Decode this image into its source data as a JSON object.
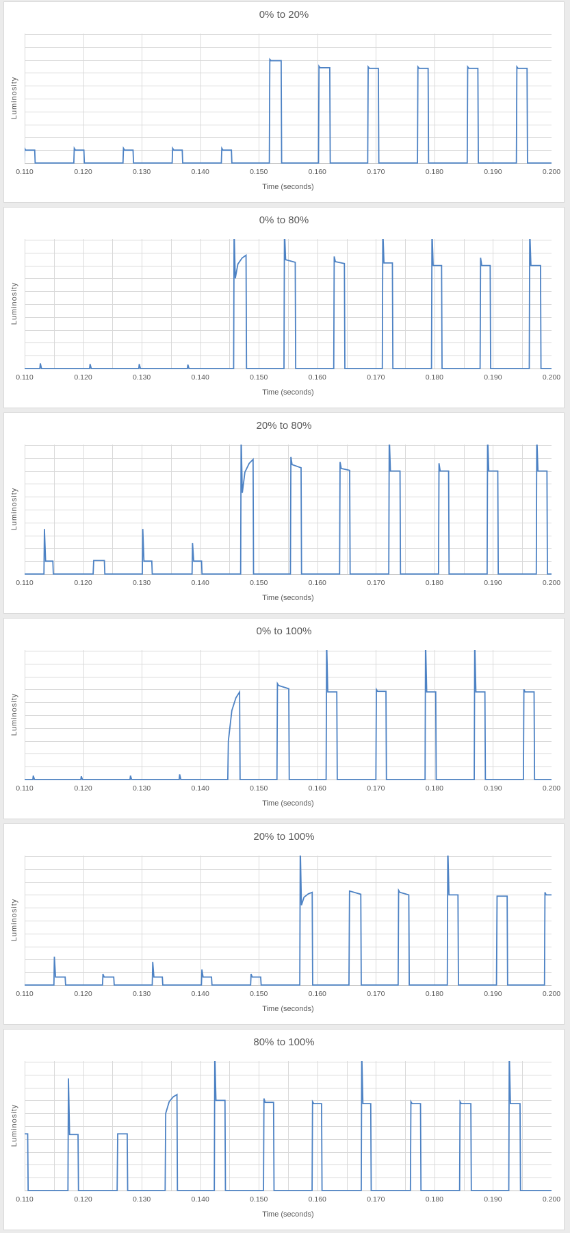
{
  "page": {
    "background": "#ebebeb",
    "panel_background": "#ffffff",
    "panel_border": "#d9d9d9",
    "gridline_color": "#d9d9d9",
    "axis_line_color": "#bfbfbf",
    "line_color": "#4d82c4",
    "text_color": "#595959"
  },
  "axis": {
    "x_label": "Time (seconds)",
    "y_label": "Luminosity",
    "x_min": 0.11,
    "x_max": 0.2,
    "x_tick_step": 0.01,
    "y_divisions": 10,
    "x_ticks": [
      "0.110",
      "0.120",
      "0.130",
      "0.140",
      "0.150",
      "0.160",
      "0.170",
      "0.180",
      "0.190",
      "0.200"
    ]
  },
  "chart_data": [
    {
      "type": "line",
      "title": "0% to 20%",
      "xlabel": "Time (seconds)",
      "ylabel": "Luminosity",
      "x_range": [
        0.11,
        0.2
      ],
      "x_gridline_step": 0.01,
      "grid": true,
      "legend": "none",
      "pulses": [
        {
          "t": 0.1099,
          "w": 0.0019,
          "lvl": 0.1,
          "spike": 0.115
        },
        {
          "t": 0.1184,
          "w": 0.0018,
          "lvl": 0.1,
          "spike": 0.115
        },
        {
          "t": 0.1268,
          "w": 0.0018,
          "lvl": 0.1,
          "spike": 0.115
        },
        {
          "t": 0.1352,
          "w": 0.0018,
          "lvl": 0.1,
          "spike": 0.115
        },
        {
          "t": 0.1436,
          "w": 0.0018,
          "lvl": 0.1,
          "spike": 0.115
        },
        {
          "t": 0.1518,
          "w": 0.0021,
          "lvl": 0.795,
          "spike": 0.805
        },
        {
          "t": 0.1602,
          "w": 0.002,
          "lvl": 0.74,
          "spike": 0.752
        },
        {
          "t": 0.1686,
          "w": 0.0019,
          "lvl": 0.735,
          "spike": 0.747
        },
        {
          "t": 0.1771,
          "w": 0.0019,
          "lvl": 0.735,
          "spike": 0.747
        },
        {
          "t": 0.1856,
          "w": 0.0019,
          "lvl": 0.735,
          "spike": 0.747
        },
        {
          "t": 0.194,
          "w": 0.0019,
          "lvl": 0.735,
          "spike": 0.747
        }
      ]
    },
    {
      "type": "line",
      "title": "0% to 80%",
      "xlabel": "Time (seconds)",
      "ylabel": "Luminosity",
      "x_range": [
        0.11,
        0.2
      ],
      "x_gridline_step": 0.005,
      "grid": true,
      "legend": "none",
      "pulses": [
        {
          "t": 0.1126,
          "w": 0.0006,
          "lvl": 0,
          "spike": 0.04
        },
        {
          "t": 0.1211,
          "w": 0.0006,
          "lvl": 0,
          "spike": 0.035
        },
        {
          "t": 0.1295,
          "w": 0.0006,
          "lvl": 0,
          "spike": 0.035
        },
        {
          "t": 0.1378,
          "w": 0.0006,
          "lvl": 0,
          "spike": 0.03
        },
        {
          "t": 0.1457,
          "w": 0.0022,
          "ramp": [
            0.7,
            0.88
          ],
          "spike": 1.08,
          "curve": true
        },
        {
          "t": 0.1543,
          "w": 0.002,
          "ramp": [
            0.845,
            0.825
          ],
          "spike": 1.08
        },
        {
          "t": 0.1628,
          "w": 0.0019,
          "ramp": [
            0.83,
            0.815
          ],
          "spike": 0.87
        },
        {
          "t": 0.1711,
          "w": 0.0018,
          "lvl": 0.82,
          "spike": 1.08
        },
        {
          "t": 0.1795,
          "w": 0.0018,
          "lvl": 0.8,
          "spike": 1.08
        },
        {
          "t": 0.1878,
          "w": 0.0018,
          "lvl": 0.8,
          "spike": 0.86
        },
        {
          "t": 0.1962,
          "w": 0.002,
          "lvl": 0.8,
          "spike": 1.08
        }
      ]
    },
    {
      "type": "line",
      "title": "20% to 80%",
      "xlabel": "Time (seconds)",
      "ylabel": "Luminosity",
      "x_range": [
        0.11,
        0.2
      ],
      "x_gridline_step": 0.005,
      "grid": true,
      "legend": "none",
      "pulses": [
        {
          "t": 0.1133,
          "w": 0.0016,
          "lvl": 0.1,
          "spike": 0.35
        },
        {
          "t": 0.1217,
          "w": 0.002,
          "lvl": 0.105
        },
        {
          "t": 0.1301,
          "w": 0.0017,
          "lvl": 0.1,
          "spike": 0.35
        },
        {
          "t": 0.1386,
          "w": 0.0017,
          "lvl": 0.1,
          "spike": 0.24
        },
        {
          "t": 0.1469,
          "w": 0.0022,
          "ramp": [
            0.63,
            0.89
          ],
          "spike": 1.08,
          "curve": true
        },
        {
          "t": 0.1554,
          "w": 0.0019,
          "ramp": [
            0.85,
            0.825
          ],
          "spike": 0.91
        },
        {
          "t": 0.1638,
          "w": 0.0018,
          "ramp": [
            0.82,
            0.805
          ],
          "spike": 0.87
        },
        {
          "t": 0.1722,
          "w": 0.002,
          "lvl": 0.8,
          "spike": 1.08
        },
        {
          "t": 0.1807,
          "w": 0.0018,
          "lvl": 0.8,
          "spike": 0.86
        },
        {
          "t": 0.189,
          "w": 0.0019,
          "lvl": 0.8,
          "spike": 1.08
        },
        {
          "t": 0.1974,
          "w": 0.0019,
          "lvl": 0.8,
          "spike": 1.08
        }
      ]
    },
    {
      "type": "line",
      "title": "0% to 100%",
      "xlabel": "Time (seconds)",
      "ylabel": "Luminosity",
      "x_range": [
        0.11,
        0.2
      ],
      "x_gridline_step": 0.01,
      "grid": true,
      "legend": "none",
      "pulses": [
        {
          "t": 0.1114,
          "w": 0.0005,
          "lvl": 0,
          "spike": 0.03
        },
        {
          "t": 0.1196,
          "w": 0.0005,
          "lvl": 0,
          "spike": 0.025
        },
        {
          "t": 0.128,
          "w": 0.0005,
          "lvl": 0,
          "spike": 0.03
        },
        {
          "t": 0.1364,
          "w": 0.0005,
          "lvl": 0,
          "spike": 0.04
        },
        {
          "t": 0.1447,
          "w": 0.0021,
          "ramp": [
            0.3,
            0.68
          ],
          "curve": true
        },
        {
          "t": 0.1531,
          "w": 0.0021,
          "ramp": [
            0.73,
            0.705
          ],
          "spike": 0.745
        },
        {
          "t": 0.1615,
          "w": 0.0019,
          "lvl": 0.68,
          "spike": 1.08
        },
        {
          "t": 0.17,
          "w": 0.0018,
          "lvl": 0.685,
          "spike": 0.7
        },
        {
          "t": 0.1784,
          "w": 0.0019,
          "lvl": 0.68,
          "spike": 1.08
        },
        {
          "t": 0.1868,
          "w": 0.0019,
          "lvl": 0.68,
          "spike": 1.08
        },
        {
          "t": 0.1952,
          "w": 0.0019,
          "lvl": 0.68,
          "spike": 0.7
        }
      ]
    },
    {
      "type": "line",
      "title": "20% to 100%",
      "xlabel": "Time (seconds)",
      "ylabel": "Luminosity",
      "x_range": [
        0.11,
        0.2
      ],
      "x_gridline_step": 0.01,
      "grid": true,
      "legend": "none",
      "pulses": [
        {
          "t": 0.115,
          "w": 0.002,
          "lvl": 0.062,
          "spike": 0.22
        },
        {
          "t": 0.1233,
          "w": 0.002,
          "lvl": 0.062,
          "spike": 0.085
        },
        {
          "t": 0.1318,
          "w": 0.0018,
          "lvl": 0.062,
          "spike": 0.18
        },
        {
          "t": 0.1402,
          "w": 0.0018,
          "lvl": 0.062,
          "spike": 0.12
        },
        {
          "t": 0.1486,
          "w": 0.0018,
          "lvl": 0.062,
          "spike": 0.085
        },
        {
          "t": 0.157,
          "w": 0.0022,
          "ramp": [
            0.62,
            0.72
          ],
          "spike": 1.08,
          "curve": true
        },
        {
          "t": 0.1654,
          "w": 0.0021,
          "ramp": [
            0.73,
            0.705
          ]
        },
        {
          "t": 0.1738,
          "w": 0.0019,
          "ramp": [
            0.72,
            0.7
          ],
          "spike": 0.735
        },
        {
          "t": 0.1822,
          "w": 0.0019,
          "lvl": 0.7,
          "spike": 1.08
        },
        {
          "t": 0.1906,
          "w": 0.0019,
          "lvl": 0.69
        },
        {
          "t": 0.1988,
          "w": 0.0019,
          "lvl": 0.7,
          "spike": 0.72
        }
      ]
    },
    {
      "type": "line",
      "title": "80% to 100%",
      "xlabel": "Time (seconds)",
      "ylabel": "Luminosity",
      "x_range": [
        0.11,
        0.2
      ],
      "x_gridline_step": 0.005,
      "grid": true,
      "legend": "none",
      "pulses": [
        {
          "t": 0.1089,
          "w": 0.0017,
          "lvl": 0.44
        },
        {
          "t": 0.1174,
          "w": 0.0018,
          "lvl": 0.435,
          "spike": 0.87
        },
        {
          "t": 0.1258,
          "w": 0.0018,
          "lvl": 0.44
        },
        {
          "t": 0.134,
          "w": 0.0021,
          "ramp": [
            0.6,
            0.745
          ],
          "curve": true
        },
        {
          "t": 0.1424,
          "w": 0.0019,
          "lvl": 0.7,
          "spike": 1.08
        },
        {
          "t": 0.1508,
          "w": 0.0018,
          "lvl": 0.685,
          "spike": 0.715
        },
        {
          "t": 0.1591,
          "w": 0.0017,
          "lvl": 0.675,
          "spike": 0.69
        },
        {
          "t": 0.1675,
          "w": 0.0017,
          "lvl": 0.675,
          "spike": 1.08
        },
        {
          "t": 0.1759,
          "w": 0.0018,
          "lvl": 0.675,
          "spike": 0.69
        },
        {
          "t": 0.1843,
          "w": 0.002,
          "lvl": 0.675,
          "spike": 0.69
        },
        {
          "t": 0.1927,
          "w": 0.002,
          "lvl": 0.675,
          "spike": 1.08
        }
      ]
    }
  ]
}
